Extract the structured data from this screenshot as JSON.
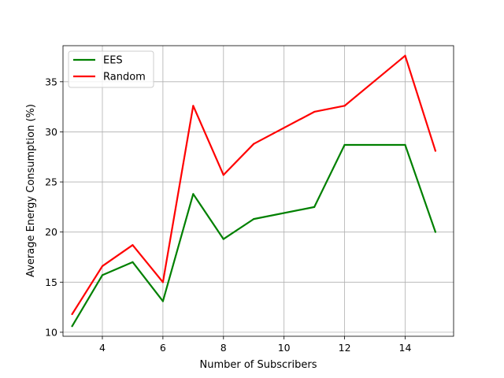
{
  "chart_data": {
    "type": "line",
    "title": "",
    "xlabel": "Number of Subscribers",
    "ylabel": "Average Energy Consumption (%)",
    "xlim": [
      2.7,
      15.6
    ],
    "ylim": [
      9.6,
      38.6
    ],
    "xticks": [
      4,
      6,
      8,
      10,
      12,
      14
    ],
    "yticks": [
      10,
      15,
      20,
      25,
      30,
      35
    ],
    "grid": true,
    "legend_position": "top-left",
    "series": [
      {
        "name": "EES",
        "color": "#008000",
        "x": [
          3,
          4,
          5,
          6,
          7,
          8,
          9,
          11,
          12,
          14,
          15
        ],
        "y": [
          10.6,
          15.7,
          17.0,
          13.1,
          23.8,
          19.3,
          21.3,
          22.5,
          28.7,
          28.7,
          20.0
        ]
      },
      {
        "name": "Random",
        "color": "#ff0000",
        "x": [
          3,
          4,
          5,
          6,
          7,
          8,
          9,
          11,
          12,
          14,
          15
        ],
        "y": [
          11.8,
          16.6,
          18.7,
          15.0,
          32.6,
          25.7,
          28.8,
          32.0,
          32.6,
          37.6,
          28.1
        ]
      }
    ]
  }
}
